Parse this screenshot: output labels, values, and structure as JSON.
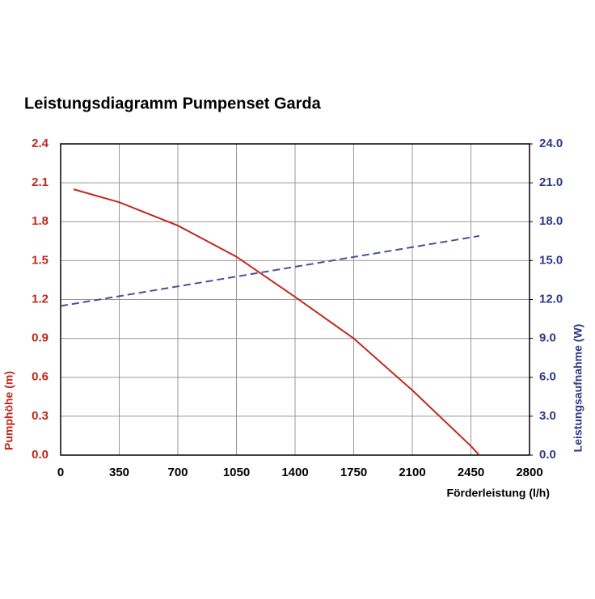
{
  "chart_data": {
    "type": "line",
    "title": "Leistungsdiagramm Pumpenset Garda",
    "x_label": "Förderleistung (l/h)",
    "y_label": "Pumphöhe (m)",
    "y2_label": "Leistungsaufnahme (W)",
    "xlim": [
      0,
      2800
    ],
    "xticks": [
      0,
      350,
      700,
      1050,
      1400,
      1750,
      2100,
      2450,
      2800
    ],
    "ylim": [
      0,
      2.4
    ],
    "yticks": [
      {
        "value": 0,
        "label": "0.0"
      },
      0.3,
      0.6,
      0.9,
      1.2,
      1.5,
      1.8,
      2.1,
      2.4
    ],
    "y2lim": [
      0,
      24
    ],
    "y2ticks": [
      {
        "value": 0,
        "label": "0.0"
      },
      {
        "value": 3,
        "label": "3.0"
      },
      {
        "value": 6,
        "label": "6.0"
      },
      {
        "value": 9,
        "label": "9.0"
      },
      {
        "value": 12,
        "label": "12.0"
      },
      {
        "value": 15,
        "label": "15.0"
      },
      {
        "value": 18,
        "label": "18.0"
      },
      {
        "value": 21,
        "label": "21.0"
      },
      {
        "value": 24,
        "label": "24.0"
      }
    ],
    "y_color": "#c0281e",
    "y2_color": "#2e3a87",
    "grid": true,
    "series": [
      {
        "color": "#c0281e",
        "dashed": false,
        "axis": "y",
        "x": [
          77,
          350,
          700,
          1050,
          1400,
          1750,
          2100,
          2450,
          2500
        ],
        "values": [
          2.05,
          1.95,
          1.77,
          1.53,
          1.22,
          0.9,
          0.5,
          0.07,
          0
        ]
      },
      {
        "color": "#4a4f9a",
        "dashed": true,
        "axis": "y2",
        "x": [
          0,
          2500
        ],
        "values": [
          11.5,
          16.9
        ]
      }
    ]
  }
}
